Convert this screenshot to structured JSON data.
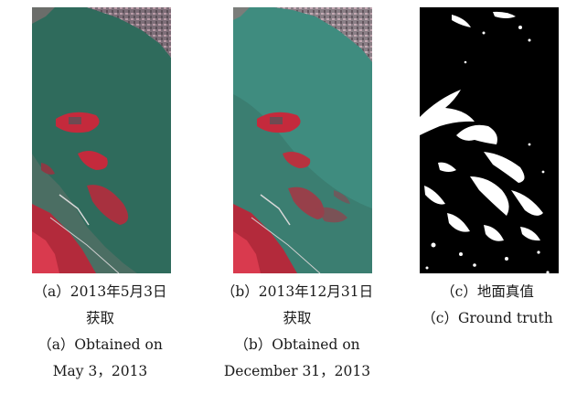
{
  "panels": [
    {
      "caption_cn_line1": "（a）2013年5月3日",
      "caption_cn_line2": "获取",
      "caption_en_line1": "（a）Obtained on",
      "caption_en_line2": "May 3，2013"
    },
    {
      "caption_cn_line1": "（b）2013年12月31日",
      "caption_cn_line2": "获取",
      "caption_en_line1": "（b）Obtained on",
      "caption_en_line2": "December 31，2013"
    },
    {
      "caption_cn_line1": "（c）地面真值",
      "caption_en_line1": "（c）Ground truth"
    }
  ],
  "colors": {
    "water_may": "#2f6b5c",
    "water_dec": "#3f8c7f",
    "vegetation_red": "#c42a3c",
    "urban_gray": "#8a7f86",
    "truth_bg": "#000000",
    "truth_change": "#ffffff"
  }
}
